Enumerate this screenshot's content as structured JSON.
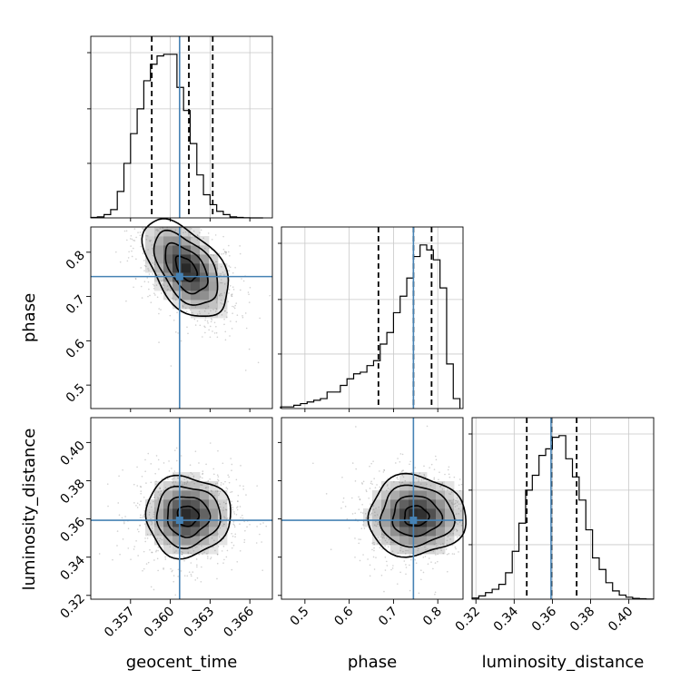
{
  "chart_data": {
    "type": "corner",
    "parameters": [
      {
        "label": "geocent_time",
        "ticks": [
          "0.357",
          "0.360",
          "0.363",
          "0.366"
        ],
        "tick_values": [
          0.357,
          0.36,
          0.363,
          0.366
        ],
        "range": [
          0.354,
          0.3677
        ],
        "truth": 0.3607,
        "quantiles": [
          0.3586,
          0.3614,
          0.3632
        ]
      },
      {
        "label": "phase",
        "ticks": [
          "0.5",
          "0.6",
          "0.7",
          "0.8"
        ],
        "tick_values": [
          0.5,
          0.6,
          0.7,
          0.8
        ],
        "range": [
          0.447,
          0.857
        ],
        "truth": 0.745,
        "quantiles": [
          0.666,
          0.745,
          0.786
        ]
      },
      {
        "label": "luminosity_distance",
        "ticks": [
          "0.32",
          "0.34",
          "0.36",
          "0.38",
          "0.40"
        ],
        "tick_values": [
          0.32,
          0.34,
          0.36,
          0.38,
          0.4
        ],
        "range": [
          0.318,
          0.413
        ],
        "truth": 0.3593,
        "quantiles": [
          0.3466,
          0.3595,
          0.3727
        ]
      }
    ],
    "histograms": [
      {
        "bins": [
          0.354,
          0.3545,
          0.355,
          0.3555,
          0.356,
          0.3565,
          0.357,
          0.3575,
          0.358,
          0.3585,
          0.359,
          0.3595,
          0.36,
          0.3605,
          0.361,
          0.3615,
          0.362,
          0.3625,
          0.363,
          0.3635,
          0.364,
          0.3645,
          0.365,
          0.3655,
          0.366,
          0.3665,
          0.367
        ],
        "counts": [
          0.003,
          0.006,
          0.02,
          0.05,
          0.16,
          0.33,
          0.51,
          0.66,
          0.83,
          0.93,
          0.98,
          0.99,
          0.99,
          0.79,
          0.65,
          0.45,
          0.26,
          0.14,
          0.08,
          0.04,
          0.02,
          0.006,
          0.003,
          0.001,
          0,
          0
        ]
      },
      {
        "bins": [
          0.445,
          0.46,
          0.475,
          0.49,
          0.505,
          0.52,
          0.535,
          0.55,
          0.565,
          0.58,
          0.595,
          0.61,
          0.625,
          0.64,
          0.655,
          0.67,
          0.685,
          0.7,
          0.715,
          0.73,
          0.745,
          0.76,
          0.775,
          0.79,
          0.805,
          0.82,
          0.835,
          0.85
        ],
        "counts": [
          0.01,
          0.01,
          0.02,
          0.03,
          0.04,
          0.05,
          0.06,
          0.1,
          0.1,
          0.14,
          0.18,
          0.21,
          0.22,
          0.26,
          0.29,
          0.39,
          0.46,
          0.58,
          0.68,
          0.79,
          0.92,
          0.99,
          0.96,
          0.9,
          0.73,
          0.27,
          0.06
        ]
      },
      {
        "bins": [
          0.318,
          0.3215,
          0.325,
          0.3285,
          0.332,
          0.3355,
          0.339,
          0.3425,
          0.346,
          0.3495,
          0.353,
          0.3565,
          0.36,
          0.3635,
          0.367,
          0.3705,
          0.374,
          0.3775,
          0.381,
          0.3845,
          0.388,
          0.3915,
          0.395,
          0.3985,
          0.402,
          0.4055,
          0.409,
          0.4125
        ],
        "counts": [
          0.007,
          0.02,
          0.04,
          0.06,
          0.09,
          0.16,
          0.29,
          0.46,
          0.66,
          0.75,
          0.87,
          0.91,
          0.98,
          0.99,
          0.85,
          0.74,
          0.6,
          0.42,
          0.25,
          0.18,
          0.1,
          0.05,
          0.025,
          0.012,
          0.005,
          0.003,
          0.001
        ]
      }
    ],
    "pairs": [
      {
        "x": 0,
        "y": 1,
        "center": [
          0.3612,
          0.763
        ],
        "spread": [
          0.0016,
          0.055
        ],
        "correlation": -0.5,
        "truth": [
          0.3607,
          0.745
        ]
      },
      {
        "x": 0,
        "y": 2,
        "center": [
          0.3613,
          0.3615
        ],
        "spread": [
          0.0016,
          0.0105
        ],
        "correlation": 0,
        "truth": [
          0.3607,
          0.3593
        ]
      },
      {
        "x": 1,
        "y": 2,
        "center": [
          0.751,
          0.3615
        ],
        "spread": [
          0.055,
          0.0105
        ],
        "correlation": 0,
        "truth": [
          0.745,
          0.3593
        ]
      }
    ],
    "grid": true,
    "truth_color": "#4682b4",
    "hist_color": "#000000"
  }
}
